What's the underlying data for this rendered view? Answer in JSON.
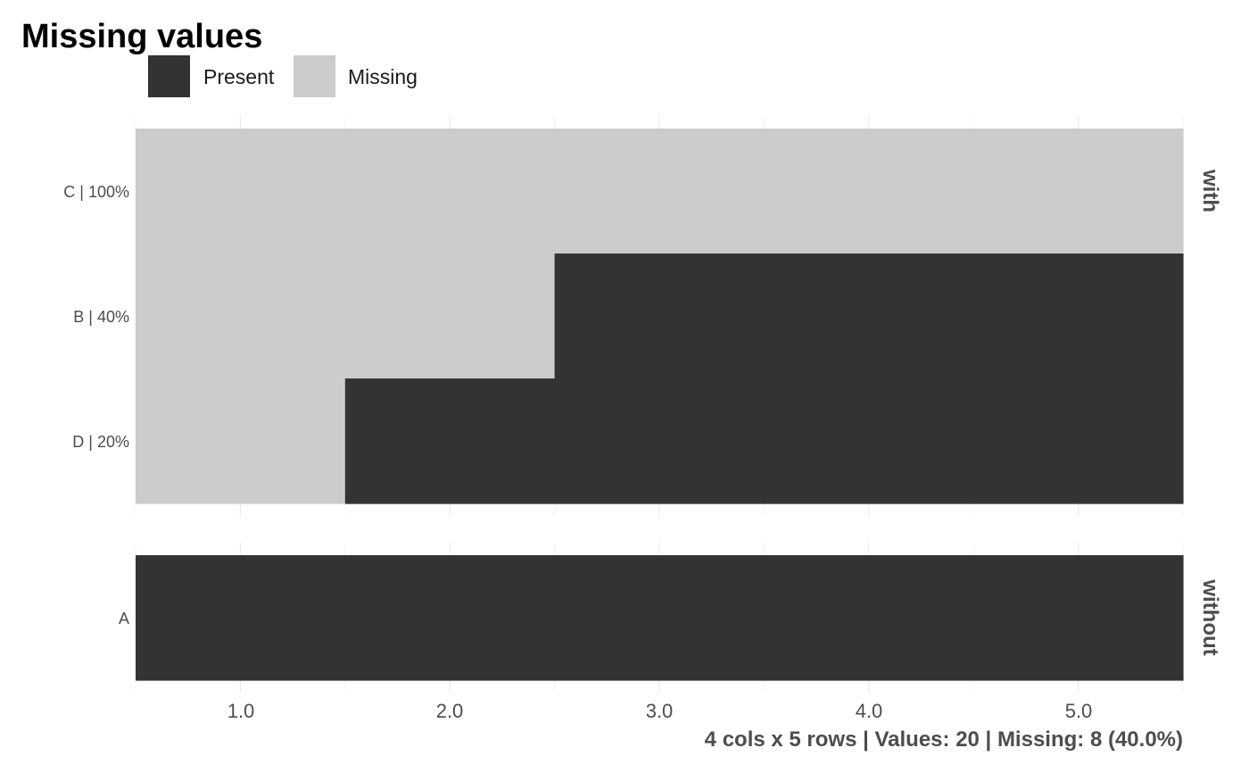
{
  "chart_data": {
    "type": "heatmap",
    "title": "Missing values",
    "legend": {
      "position": "top-left",
      "items": [
        {
          "key": "present",
          "label": "Present",
          "color": "#333333"
        },
        {
          "key": "missing",
          "label": "Missing",
          "color": "#cccccc"
        }
      ]
    },
    "x": {
      "range": [
        0.5,
        5.5
      ],
      "ticks": [
        1.0,
        2.0,
        3.0,
        4.0,
        5.0
      ],
      "tick_labels": [
        "1.0",
        "2.0",
        "3.0",
        "4.0",
        "5.0"
      ],
      "grid": true
    },
    "panels": [
      {
        "strip": "with",
        "rows": [
          {
            "label": "C | 100%",
            "cells": [
              "missing",
              "missing",
              "missing",
              "missing",
              "missing"
            ]
          },
          {
            "label": "B | 40%",
            "cells": [
              "missing",
              "missing",
              "present",
              "present",
              "present"
            ]
          },
          {
            "label": "D | 20%",
            "cells": [
              "missing",
              "present",
              "present",
              "present",
              "present"
            ]
          }
        ]
      },
      {
        "strip": "without",
        "rows": [
          {
            "label": "A",
            "cells": [
              "present",
              "present",
              "present",
              "present",
              "present"
            ]
          }
        ]
      }
    ],
    "caption": "4 cols x 5 rows | Values: 20 | Missing: 8 (40.0%)"
  }
}
